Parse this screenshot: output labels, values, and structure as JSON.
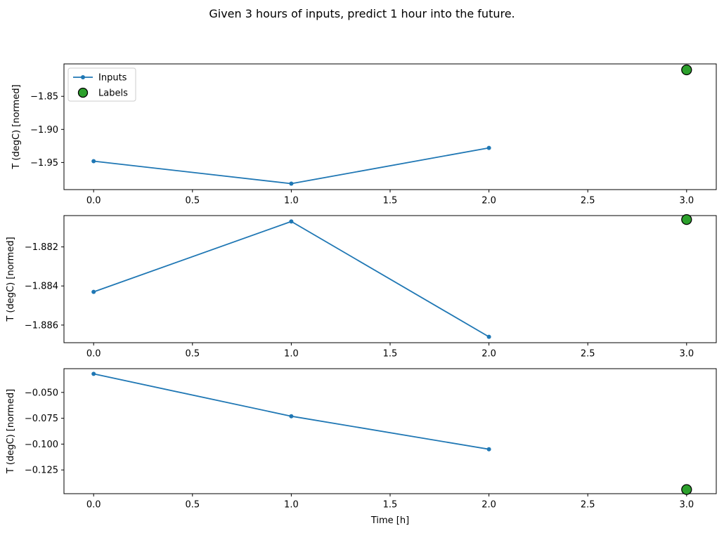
{
  "figure": {
    "title": "Given 3 hours of inputs, predict 1 hour into the future.",
    "background_color": "#ffffff",
    "text_color": "#000000"
  },
  "legend": {
    "position": "upper left of first subplot",
    "frame_color": "#cccccc",
    "items": [
      {
        "label": "Inputs",
        "marker": "line-with-dot",
        "color": "#1f77b4"
      },
      {
        "label": "Labels",
        "marker": "filled-circle",
        "color": "#2ca02c",
        "edge_color": "#000000"
      }
    ]
  },
  "chart_data": [
    {
      "type": "line",
      "subplot": 1,
      "xlabel": "",
      "ylabel": "T (degC) [normed]",
      "xlim": [
        -0.15,
        3.15
      ],
      "ylim": [
        -1.991,
        -1.801
      ],
      "xticks": [
        0.0,
        0.5,
        1.0,
        1.5,
        2.0,
        2.5,
        3.0
      ],
      "xtick_labels": [
        "0.0",
        "0.5",
        "1.0",
        "1.5",
        "2.0",
        "2.5",
        "3.0"
      ],
      "yticks": [
        -1.85,
        -1.9,
        -1.95
      ],
      "ytick_labels": [
        "−1.85",
        "−1.90",
        "−1.95"
      ],
      "grid": false,
      "legend": true,
      "series": [
        {
          "name": "Inputs",
          "style": "line-marker",
          "color": "#1f77b4",
          "x": [
            0,
            1,
            2
          ],
          "y": [
            -1.948,
            -1.982,
            -1.928
          ]
        },
        {
          "name": "Labels",
          "style": "scatter",
          "color": "#2ca02c",
          "edge_color": "#000000",
          "x": [
            3
          ],
          "y": [
            -1.81
          ]
        }
      ]
    },
    {
      "type": "line",
      "subplot": 2,
      "xlabel": "",
      "ylabel": "T (degC) [normed]",
      "xlim": [
        -0.15,
        3.15
      ],
      "ylim": [
        -1.8869,
        -1.8804
      ],
      "xticks": [
        0.0,
        0.5,
        1.0,
        1.5,
        2.0,
        2.5,
        3.0
      ],
      "xtick_labels": [
        "0.0",
        "0.5",
        "1.0",
        "1.5",
        "2.0",
        "2.5",
        "3.0"
      ],
      "yticks": [
        -1.882,
        -1.884,
        -1.886
      ],
      "ytick_labels": [
        "−1.882",
        "−1.884",
        "−1.886"
      ],
      "grid": false,
      "legend": false,
      "series": [
        {
          "name": "Inputs",
          "style": "line-marker",
          "color": "#1f77b4",
          "x": [
            0,
            1,
            2
          ],
          "y": [
            -1.8843,
            -1.8807,
            -1.8866
          ]
        },
        {
          "name": "Labels",
          "style": "scatter",
          "color": "#2ca02c",
          "edge_color": "#000000",
          "x": [
            3
          ],
          "y": [
            -1.8806
          ]
        }
      ]
    },
    {
      "type": "line",
      "subplot": 3,
      "xlabel": "Time [h]",
      "ylabel": "T (degC) [normed]",
      "xlim": [
        -0.15,
        3.15
      ],
      "ylim": [
        -0.148,
        -0.027
      ],
      "xticks": [
        0.0,
        0.5,
        1.0,
        1.5,
        2.0,
        2.5,
        3.0
      ],
      "xtick_labels": [
        "0.0",
        "0.5",
        "1.0",
        "1.5",
        "2.0",
        "2.5",
        "3.0"
      ],
      "yticks": [
        -0.05,
        -0.075,
        -0.1,
        -0.125
      ],
      "ytick_labels": [
        "−0.050",
        "−0.075",
        "−0.100",
        "−0.125"
      ],
      "grid": false,
      "legend": false,
      "series": [
        {
          "name": "Inputs",
          "style": "line-marker",
          "color": "#1f77b4",
          "x": [
            0,
            1,
            2
          ],
          "y": [
            -0.032,
            -0.073,
            -0.105
          ]
        },
        {
          "name": "Labels",
          "style": "scatter",
          "color": "#2ca02c",
          "edge_color": "#000000",
          "x": [
            3
          ],
          "y": [
            -0.144
          ]
        }
      ]
    }
  ]
}
